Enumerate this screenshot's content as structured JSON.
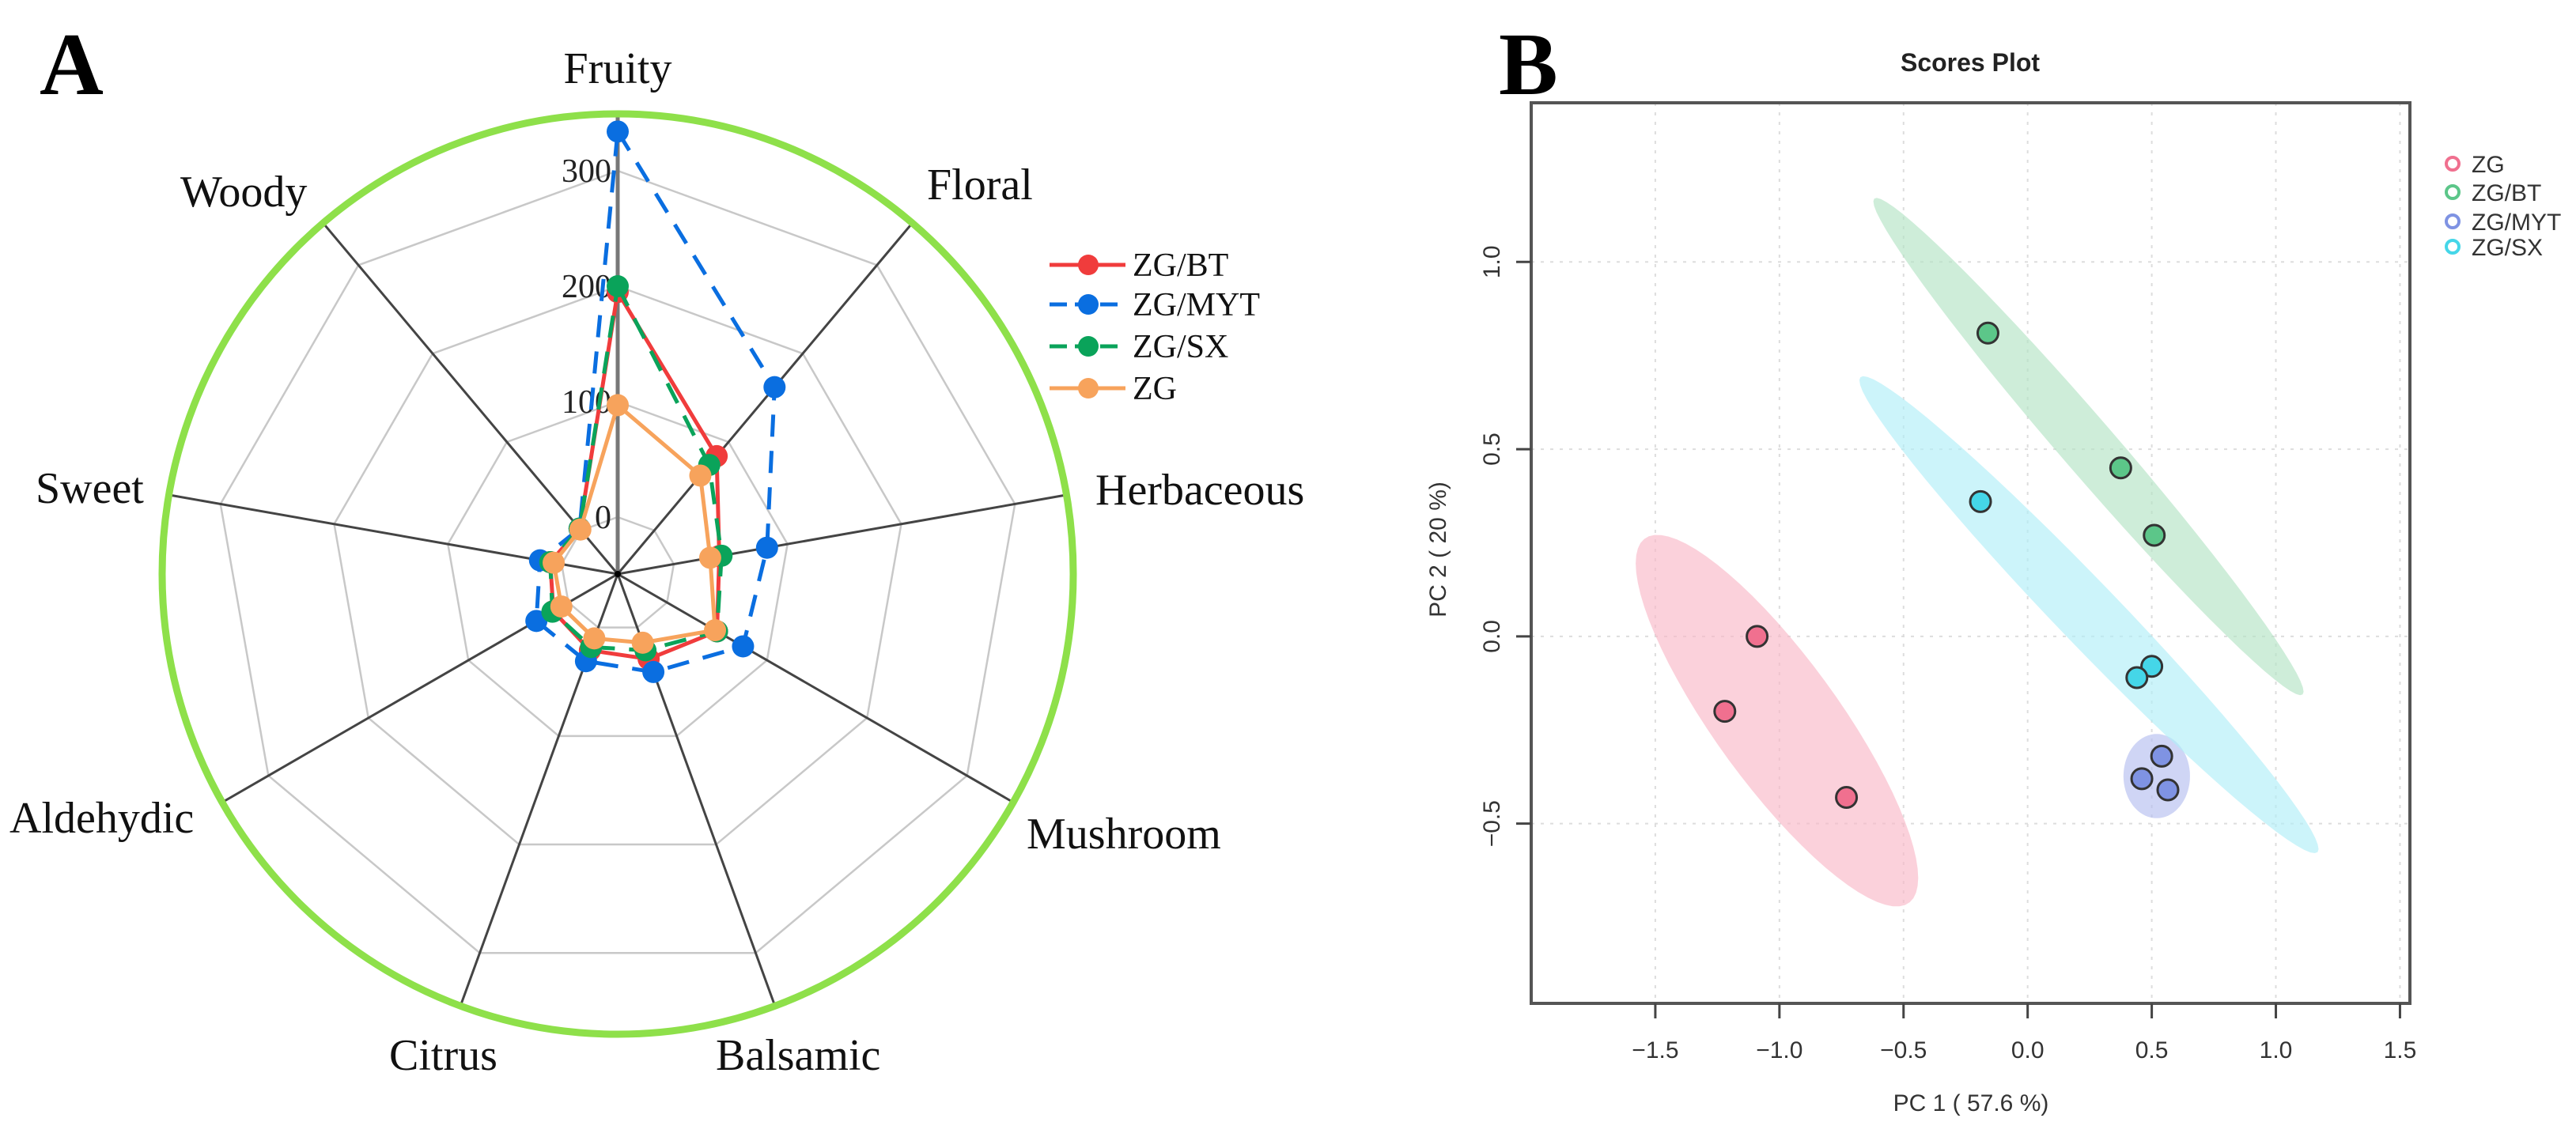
{
  "chart_data": [
    {
      "panel_label": "A",
      "type": "radar",
      "axes": [
        "Fruity",
        "Floral",
        "Herbaceous",
        "Mushroom",
        "Balsamic",
        "Citrus",
        "Aldehydic",
        "Sweet",
        "Woody"
      ],
      "radial_ticks": [
        0,
        100,
        200,
        300
      ],
      "radial_tick_labels": [
        "0",
        "100",
        "200",
        "300"
      ],
      "range": [
        0,
        350
      ],
      "series": [
        {
          "name": "ZG/BT",
          "color": "#f03c3c",
          "dashed": false,
          "values": [
            195,
            84,
            40,
            50,
            29,
            21,
            15,
            10,
            2
          ]
        },
        {
          "name": "ZG/MYT",
          "color": "#0a6ee0",
          "dashed": true,
          "values": [
            334,
            162,
            82,
            76,
            41,
            31,
            32,
            19,
            2
          ]
        },
        {
          "name": "ZG/SX",
          "color": "#0aa35a",
          "dashed": true,
          "values": [
            200,
            74,
            42,
            50,
            21,
            18,
            16,
            10,
            2
          ]
        },
        {
          "name": "ZG",
          "color": "#f7a35c",
          "dashed": false,
          "values": [
            97,
            62,
            32,
            48,
            14,
            10,
            7,
            7,
            1
          ]
        }
      ],
      "frame_color": "#8ee04a",
      "legend": "top-right"
    },
    {
      "panel_label": "B",
      "type": "scatter",
      "title": "Scores Plot",
      "xlabel": "PC 1 ( 57.6 %)",
      "ylabel": "PC 2 ( 20 %)",
      "xlim": [
        -2.0,
        1.54
      ],
      "ylim": [
        -0.98,
        1.425
      ],
      "xticks": [
        -1.5,
        -1.0,
        -0.5,
        0.0,
        0.5,
        1.0,
        1.5
      ],
      "xtick_labels": [
        "−1.5",
        "−1.0",
        "−0.5",
        "0.0",
        "0.5",
        "1.0",
        "1.5"
      ],
      "yticks": [
        -0.5,
        0.0,
        0.5,
        1.0
      ],
      "ytick_labels": [
        "−0.5",
        "0.0",
        "0.5",
        "1.0"
      ],
      "grid": true,
      "legend": "top-right",
      "series": [
        {
          "name": "ZG",
          "color": "#f0708f",
          "fill": "#f9b8c8",
          "points": [
            [
              -1.09,
              0.0
            ],
            [
              -1.22,
              -0.2
            ],
            [
              -0.73,
              -0.43
            ]
          ],
          "ellipse": {
            "center": [
              -1.01,
              -0.225
            ],
            "u": [
              -0.535,
              0.485
            ],
            "v": [
              0.194,
              0.105
            ]
          }
        },
        {
          "name": "ZG/BT",
          "color": "#5cc689",
          "fill": "#b4e4c4",
          "points": [
            [
              -0.16,
              0.81
            ],
            [
              0.375,
              0.45
            ],
            [
              0.51,
              0.27
            ]
          ],
          "ellipse": {
            "center": [
              0.245,
              0.507
            ],
            "u": [
              -0.863,
              0.662
            ],
            "v": [
              0.079,
              0.051
            ]
          }
        },
        {
          "name": "ZG/MYT",
          "color": "#7f93e3",
          "fill": "#b6bff0",
          "points": [
            [
              0.54,
              -0.32
            ],
            [
              0.46,
              -0.38
            ],
            [
              0.565,
              -0.41
            ]
          ],
          "ellipse": {
            "center": [
              0.52,
              -0.373
            ],
            "u": [
              0.134,
              0.0
            ],
            "v": [
              0.0,
              0.1125
            ]
          }
        },
        {
          "name": "ZG/SX",
          "color": "#45d6e8",
          "fill": "#b0eef8",
          "points": [
            [
              -0.19,
              0.36
            ],
            [
              0.5,
              -0.08
            ],
            [
              0.44,
              -0.11
            ]
          ],
          "ellipse": {
            "center": [
              0.247,
              0.058
            ],
            "u": [
              -0.921,
              0.634
            ],
            "v": [
              0.086,
              0.061
            ]
          }
        }
      ]
    }
  ]
}
